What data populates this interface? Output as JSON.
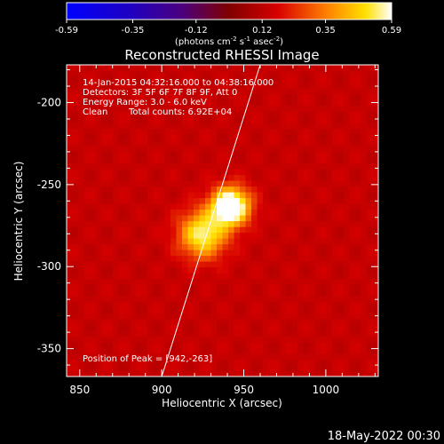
{
  "colorbar": {
    "ticks": [
      "-0.59",
      "-0.35",
      "-0.12",
      "0.12",
      "0.35",
      "0.59"
    ],
    "tick_values": [
      -0.59,
      -0.35,
      -0.12,
      0.12,
      0.35,
      0.59
    ],
    "range": [
      -0.59,
      0.59
    ],
    "units_label": "(photons cm",
    "units_exp1": "-2",
    "units_mid": " s",
    "units_exp2": "-1",
    "units_tail": " asec",
    "units_exp3": "-2",
    "units_close": ")"
  },
  "chart_data": {
    "type": "heatmap",
    "title": "Reconstructed RHESSI Image",
    "xlabel": "Heliocentric X (arcsec)",
    "ylabel": "Heliocentric Y (arcsec)",
    "xlim": [
      842,
      1032
    ],
    "ylim": [
      -367,
      -177
    ],
    "x_ticks": [
      850,
      900,
      950,
      1000
    ],
    "y_ticks": [
      -200,
      -250,
      -300,
      -350
    ],
    "annotations": {
      "time_range": "14-Jan-2015 04:32:16.000 to 04:38:16.000",
      "detectors": "Detectors: 3F 5F 6F 7F 8F 9F, Att 0",
      "energy": "Energy Range: 3.0 - 6.0 keV",
      "method": "Clean",
      "total_counts": "Total counts: 6.92E+04",
      "peak": "Position of Peak = [942,-263]"
    },
    "peak": [
      942,
      -263
    ],
    "sources": [
      {
        "x": 942,
        "y": -263,
        "amp": 0.62,
        "sigma": 8
      },
      {
        "x": 925,
        "y": -280,
        "amp": 0.42,
        "sigma": 10
      }
    ],
    "background_level": 0.14,
    "limb_line": [
      [
        900,
        -367
      ],
      [
        960,
        -177
      ]
    ]
  },
  "footer": {
    "date": "18-May-2022 00:30"
  }
}
